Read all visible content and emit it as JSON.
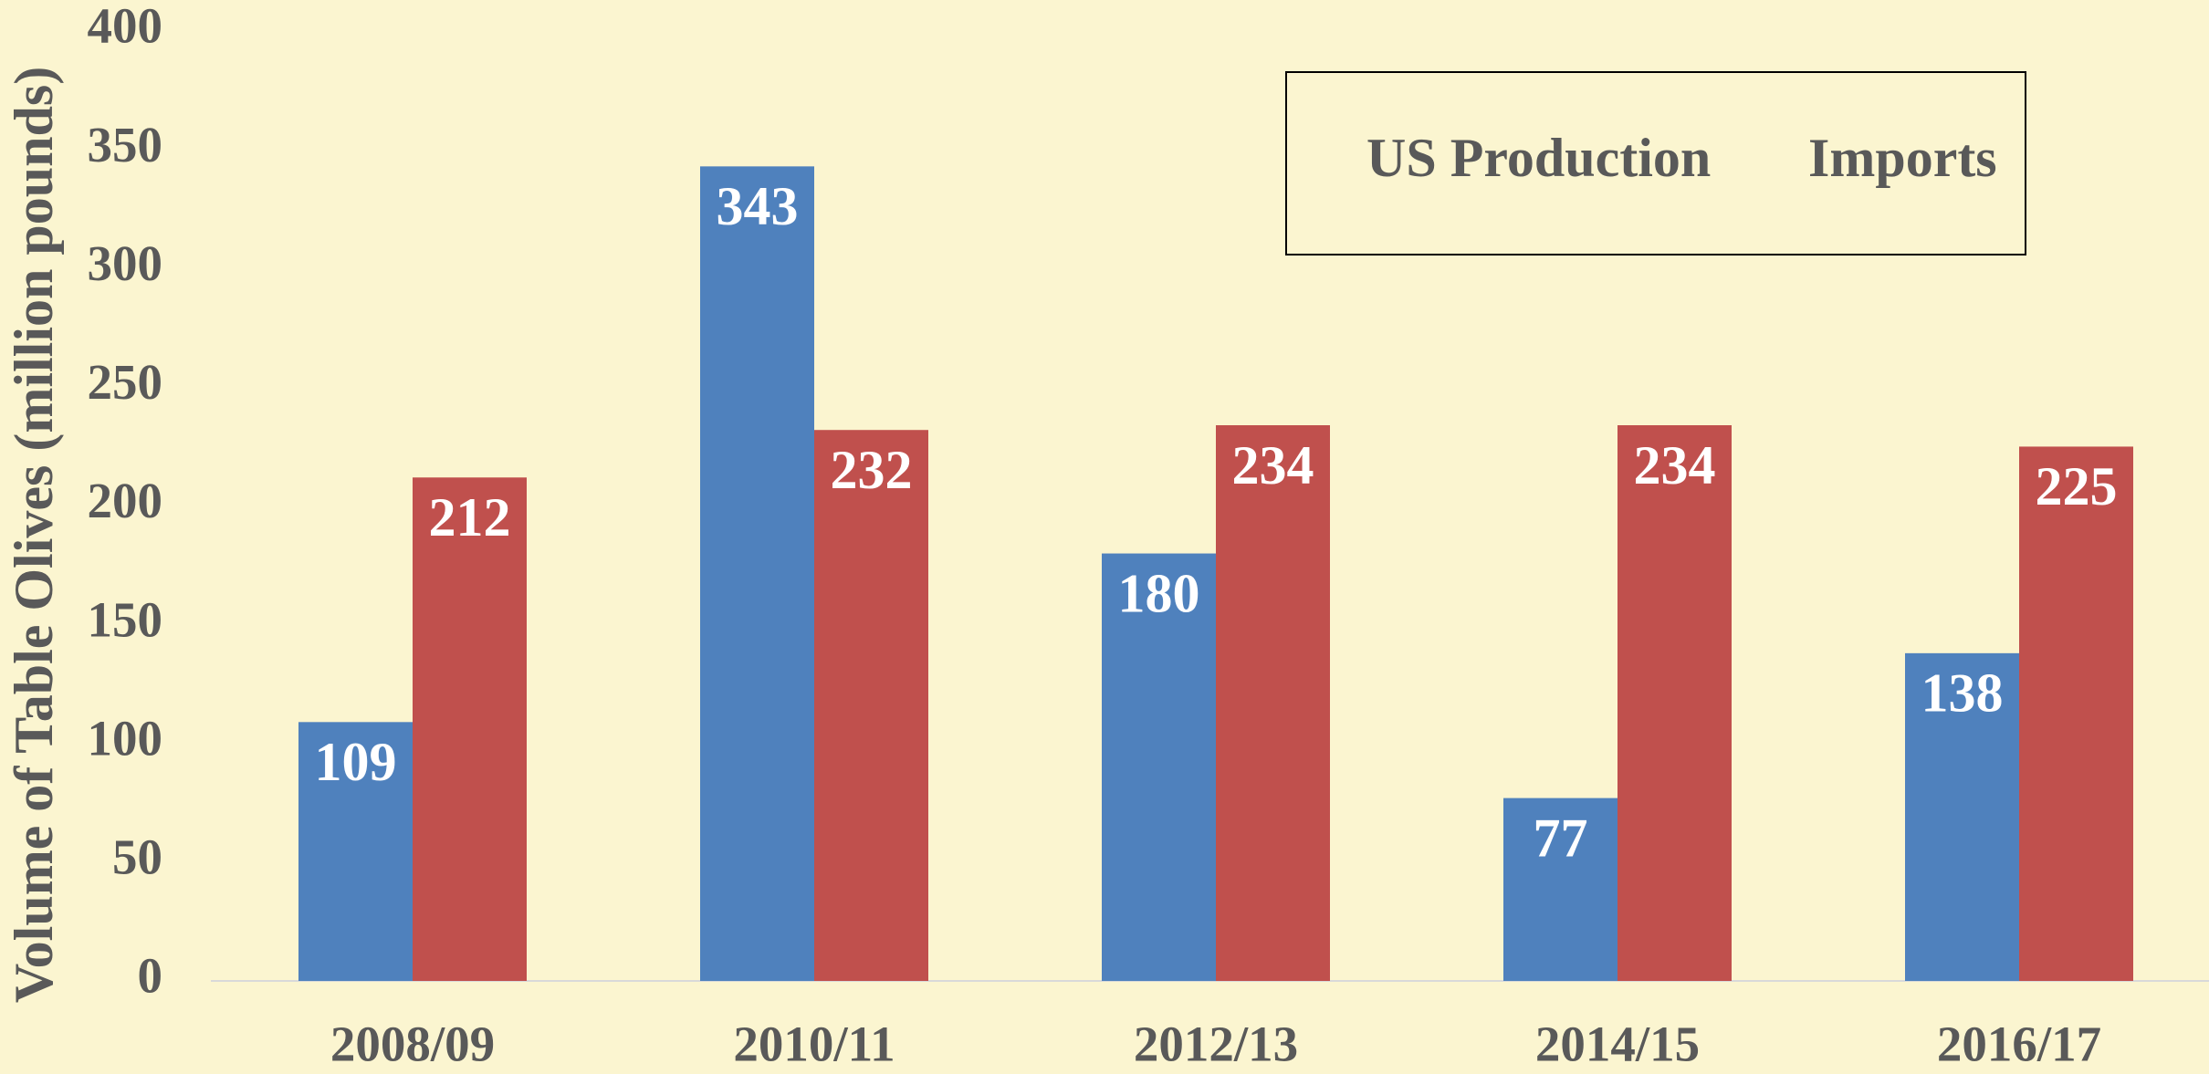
{
  "chart_data": {
    "type": "bar",
    "y_label": "Volume of Table Olives (million pounds)",
    "categories": [
      "2008/09",
      "2010/11",
      "2012/13",
      "2014/15",
      "2016/17"
    ],
    "series": [
      {
        "name": "US Production",
        "color": "#4f81bd",
        "values": [
          109,
          343,
          180,
          77,
          138
        ]
      },
      {
        "name": "Imports",
        "color": "#c0504d",
        "values": [
          212,
          232,
          234,
          234,
          225
        ]
      }
    ],
    "ylim": [
      0,
      400
    ],
    "yticks": [
      0,
      50,
      100,
      150,
      200,
      250,
      300,
      350,
      400
    ],
    "grid": false,
    "legend": "upper right",
    "data_labels": true
  }
}
